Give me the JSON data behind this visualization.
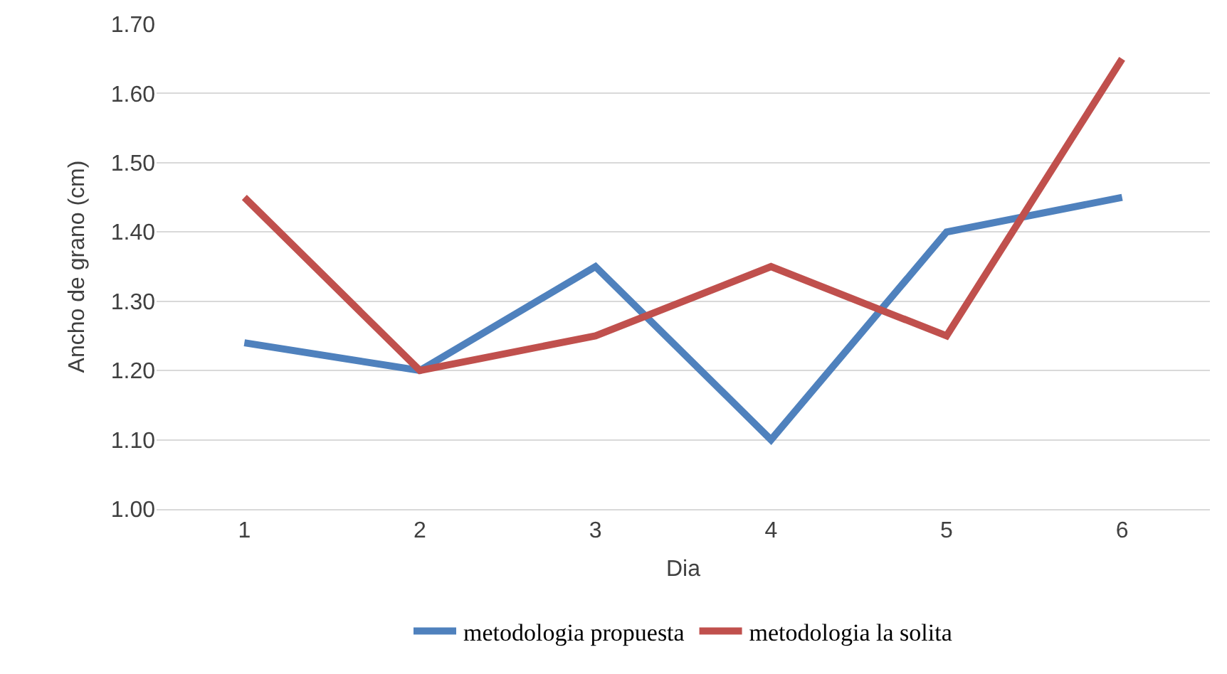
{
  "chart_data": {
    "type": "line",
    "xlabel": "Dia",
    "ylabel": "Ancho de grano (cm)",
    "categories": [
      "1",
      "2",
      "3",
      "4",
      "5",
      "6"
    ],
    "series": [
      {
        "name": "metodologia propuesta",
        "color": "#4f81bd",
        "values": [
          1.24,
          1.2,
          1.35,
          1.1,
          1.4,
          1.45
        ]
      },
      {
        "name": "metodologia la solita",
        "color": "#c0504d",
        "values": [
          1.45,
          1.2,
          1.25,
          1.35,
          1.25,
          1.65
        ]
      }
    ],
    "ylim": [
      1.0,
      1.7
    ],
    "yticks": [
      {
        "value": 1.0,
        "label": "1.00"
      },
      {
        "value": 1.1,
        "label": "1.10"
      },
      {
        "value": 1.2,
        "label": "1.20"
      },
      {
        "value": 1.3,
        "label": "1.30"
      },
      {
        "value": 1.4,
        "label": "1.40"
      },
      {
        "value": 1.5,
        "label": "1.50"
      },
      {
        "value": 1.6,
        "label": "1.60"
      },
      {
        "value": 1.7,
        "label": "1.70"
      }
    ],
    "grid": "y",
    "legend": "bottom",
    "marker": "none",
    "line_style": "solid"
  }
}
